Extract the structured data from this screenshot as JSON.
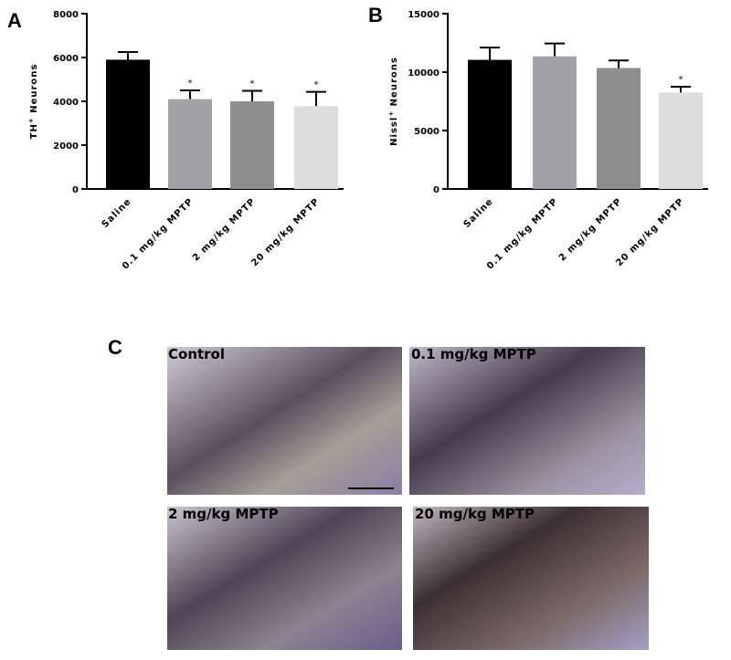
{
  "chart_data": [
    {
      "type": "bar",
      "panel_label": "A",
      "ylabel_parts": [
        "TH",
        "+",
        " Neurons"
      ],
      "categories": [
        "Saline",
        "0.1 mg/kg MPTP",
        "2 mg/kg MPTP",
        "20 mg/kg MPTP"
      ],
      "values": [
        5900,
        4100,
        4000,
        3780
      ],
      "errors": [
        350,
        400,
        480,
        650
      ],
      "annotations": [
        null,
        "*",
        "*",
        "*"
      ],
      "colors": [
        "#000000",
        "#a2a2a6",
        "#8e8e8e",
        "#dddddd"
      ],
      "ylim": [
        0,
        8000
      ],
      "yticks": [
        0,
        2000,
        4000,
        6000,
        8000
      ]
    },
    {
      "type": "bar",
      "panel_label": "B",
      "ylabel_parts": [
        "Nissl",
        "+",
        " Neurons"
      ],
      "categories": [
        "Saline",
        "0.1 mg/kg MPTP",
        "2 mg/kg MPTP",
        "20 mg/kg MPTP"
      ],
      "values": [
        11050,
        11350,
        10350,
        8250
      ],
      "errors": [
        1050,
        1100,
        650,
        500
      ],
      "annotations": [
        null,
        null,
        null,
        "*"
      ],
      "colors": [
        "#000000",
        "#a2a2a6",
        "#8e8e8e",
        "#dddddd"
      ],
      "ylim": [
        0,
        15000
      ],
      "yticks": [
        0,
        5000,
        10000,
        15000
      ]
    }
  ],
  "panel_c": {
    "label": "C",
    "images": [
      "Control",
      "0.1 mg/kg MPTP",
      "2 mg/kg MPTP",
      "20 mg/kg MPTP"
    ]
  }
}
